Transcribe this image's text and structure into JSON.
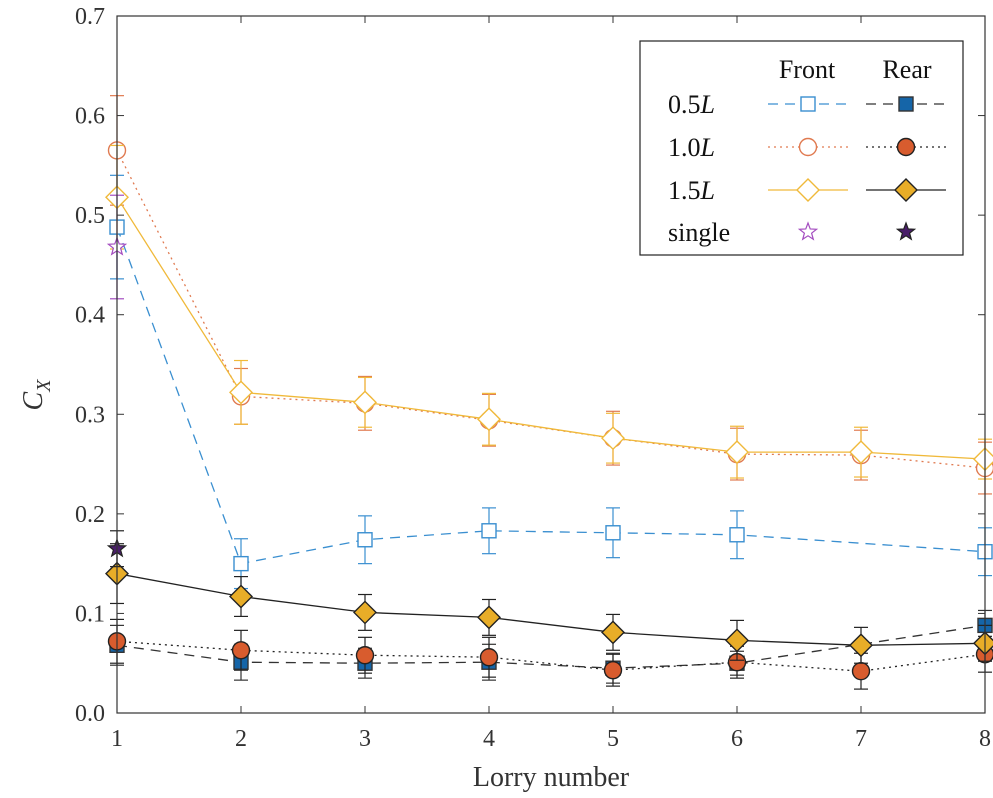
{
  "chart_data": {
    "type": "line",
    "title": "",
    "xlabel": "Lorry number",
    "ylabel_main": "C",
    "ylabel_sub": "X",
    "xlim": [
      1,
      8
    ],
    "ylim": [
      0,
      0.7
    ],
    "x_ticks": [
      1,
      2,
      3,
      4,
      5,
      6,
      7,
      8
    ],
    "y_ticks": [
      0.0,
      0.1,
      0.2,
      0.3,
      0.4,
      0.5,
      0.6,
      0.7
    ],
    "y_tick_labels": [
      "0.0",
      "0.1",
      "0.2",
      "0.3",
      "0.4",
      "0.5",
      "0.6",
      "0.7"
    ],
    "grid": false,
    "legend_position": "top-right",
    "legend": {
      "column_headers": [
        "Front",
        "Rear"
      ],
      "rows": [
        {
          "label_number": "0.5",
          "label_italic": "L",
          "front": "0.5L-front",
          "rear": "0.5L-rear"
        },
        {
          "label_number": "1.0",
          "label_italic": "L",
          "front": "1.0L-front",
          "rear": "1.0L-rear"
        },
        {
          "label_number": "1.5",
          "label_italic": "L",
          "front": "1.5L-front",
          "rear": "1.5L-rear"
        },
        {
          "label_number": "single",
          "label_italic": "",
          "front": "single-front",
          "rear": "single-rear"
        }
      ]
    },
    "series": [
      {
        "key": "0.5L-front",
        "color": "#3a8fd0",
        "fill": "none",
        "marker": "square",
        "dash": "10,7",
        "line": true,
        "x": [
          1,
          2,
          3,
          4,
          5,
          6,
          8
        ],
        "y": [
          0.488,
          0.15,
          0.174,
          0.183,
          0.181,
          0.179,
          0.162
        ],
        "err": [
          0.052,
          0.025,
          0.024,
          0.023,
          0.025,
          0.024,
          0.024
        ]
      },
      {
        "key": "0.5L-rear",
        "color": "#333333",
        "fill": "#1565a8",
        "marker": "square",
        "dash": "10,7",
        "line": true,
        "x": [
          1,
          2,
          3,
          4,
          5,
          6,
          8
        ],
        "y": [
          0.068,
          0.051,
          0.05,
          0.051,
          0.045,
          0.05,
          0.088
        ],
        "err": [
          0.02,
          0.018,
          0.015,
          0.018,
          0.015,
          0.012,
          0.015
        ]
      },
      {
        "key": "1.0L-front",
        "color": "#e07a50",
        "fill": "none",
        "marker": "circle",
        "dash": "2,4",
        "line": true,
        "x": [
          1,
          2,
          3,
          4,
          5,
          6,
          7,
          8
        ],
        "y": [
          0.565,
          0.318,
          0.311,
          0.294,
          0.276,
          0.26,
          0.259,
          0.246
        ],
        "err": [
          0.055,
          0.028,
          0.027,
          0.026,
          0.027,
          0.026,
          0.025,
          0.026
        ]
      },
      {
        "key": "1.0L-rear",
        "color": "#222222",
        "fill": "#d85c2e",
        "marker": "circle",
        "dash": "2,4",
        "line": true,
        "x": [
          1,
          2,
          3,
          4,
          5,
          6,
          7,
          8
        ],
        "y": [
          0.072,
          0.063,
          0.058,
          0.056,
          0.043,
          0.051,
          0.042,
          0.059
        ],
        "err": [
          0.022,
          0.02,
          0.018,
          0.02,
          0.016,
          0.016,
          0.018,
          0.018
        ]
      },
      {
        "key": "1.5L-front",
        "color": "#f0b93a",
        "fill": "none",
        "marker": "diamond",
        "dash": "",
        "line": true,
        "x": [
          1,
          2,
          3,
          4,
          5,
          6,
          7,
          8
        ],
        "y": [
          0.518,
          0.322,
          0.312,
          0.295,
          0.276,
          0.262,
          0.262,
          0.255
        ],
        "err": [
          0.052,
          0.032,
          0.025,
          0.026,
          0.025,
          0.026,
          0.025,
          0.02
        ]
      },
      {
        "key": "1.5L-rear",
        "color": "#222222",
        "fill": "#e8ad28",
        "marker": "diamond",
        "dash": "",
        "line": true,
        "x": [
          1,
          2,
          3,
          4,
          5,
          6,
          7,
          8
        ],
        "y": [
          0.14,
          0.117,
          0.101,
          0.096,
          0.081,
          0.073,
          0.068,
          0.07
        ],
        "err": [
          0.03,
          0.02,
          0.018,
          0.018,
          0.018,
          0.02,
          0.018,
          0.018
        ]
      },
      {
        "key": "single-front",
        "color": "#a44dc0",
        "fill": "none",
        "marker": "star",
        "dash": "",
        "line": false,
        "x": [
          1
        ],
        "y": [
          0.468
        ],
        "err": [
          0.052
        ]
      },
      {
        "key": "single-rear",
        "color": "#222222",
        "fill": "#4a1e6a",
        "marker": "star",
        "dash": "",
        "line": false,
        "x": [
          1
        ],
        "y": [
          0.165
        ],
        "err": [
          0.018
        ]
      }
    ]
  }
}
